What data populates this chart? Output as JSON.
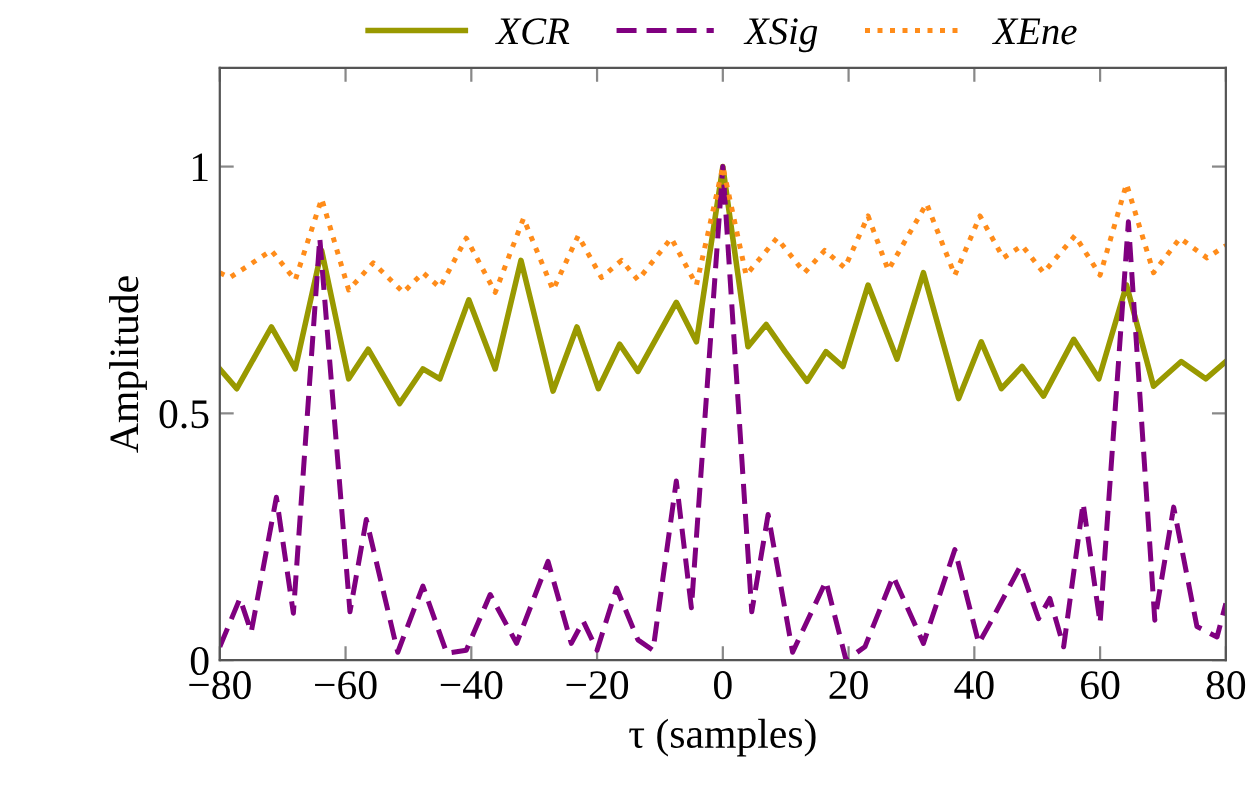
{
  "chart_data": {
    "type": "line",
    "xlabel": "τ (samples)",
    "ylabel": "Amplitude",
    "xlim": [
      -80,
      80
    ],
    "ylim": [
      0,
      1.2
    ],
    "xticks": [
      -80,
      -60,
      -40,
      -20,
      0,
      20,
      40,
      60,
      80
    ],
    "yticks": [
      0,
      0.5,
      1
    ],
    "grid": false,
    "legend": "top",
    "marker": "none",
    "series": [
      {
        "name": "XCR",
        "color": "#999900",
        "line_style": "solid",
        "x": [
          -80,
          -77.3,
          -71.8,
          -68,
          -63.8,
          -59.5,
          -56.4,
          -51.4,
          -47.7,
          -45,
          -40.4,
          -36.2,
          -32.1,
          -27,
          -23.2,
          -19.8,
          -16.4,
          -13.5,
          -7.4,
          -4.2,
          0,
          4,
          6.9,
          9.9,
          13.4,
          16.4,
          19.1,
          23.1,
          27.7,
          31.9,
          37.5,
          41.1,
          44.3,
          47.6,
          51,
          55.8,
          59.8,
          64.2,
          68.5,
          72.9,
          76.8,
          80
        ],
        "values": [
          0.59,
          0.55,
          0.675,
          0.59,
          0.83,
          0.57,
          0.63,
          0.52,
          0.59,
          0.57,
          0.73,
          0.59,
          0.81,
          0.545,
          0.675,
          0.55,
          0.64,
          0.585,
          0.725,
          0.645,
          1.0,
          0.635,
          0.68,
          0.625,
          0.565,
          0.625,
          0.595,
          0.76,
          0.61,
          0.785,
          0.53,
          0.645,
          0.55,
          0.595,
          0.535,
          0.65,
          0.57,
          0.76,
          0.555,
          0.605,
          0.57,
          0.605
        ]
      },
      {
        "name": "XSig",
        "color": "#800080",
        "line_style": "dashed",
        "x": [
          -80,
          -76.8,
          -75,
          -71,
          -68.3,
          -64.1,
          -59.3,
          -56.7,
          -51.7,
          -47.7,
          -43.9,
          -40.8,
          -37,
          -32.8,
          -27.8,
          -24.1,
          -22.2,
          -20,
          -16.9,
          -13.5,
          -11.1,
          -7.4,
          -5,
          0,
          4.6,
          7.2,
          11.1,
          16.4,
          19.6,
          22.6,
          27.1,
          31.9,
          36.9,
          40.7,
          42.5,
          47.3,
          50.2,
          52,
          54.2,
          57.3,
          60,
          64.5,
          68.7,
          71.7,
          75.4,
          78.6,
          80
        ],
        "values": [
          0.027,
          0.125,
          0.057,
          0.33,
          0.095,
          0.855,
          0.098,
          0.285,
          0.016,
          0.15,
          0.014,
          0.02,
          0.133,
          0.034,
          0.2,
          0.034,
          0.079,
          0.02,
          0.146,
          0.041,
          0.02,
          0.363,
          0.106,
          1.0,
          0.098,
          0.295,
          0.016,
          0.16,
          0.0,
          0.027,
          0.17,
          0.034,
          0.224,
          0.034,
          0.075,
          0.19,
          0.084,
          0.125,
          0.027,
          0.318,
          0.075,
          0.888,
          0.081,
          0.31,
          0.068,
          0.047,
          0.115
        ]
      },
      {
        "name": "XEne",
        "color": "#ff8c1a",
        "line_style": "dotted",
        "x": [
          -80,
          -78.4,
          -71.8,
          -68,
          -63.8,
          -59.5,
          -55.6,
          -50.8,
          -47.7,
          -45,
          -40.8,
          -36.2,
          -31.7,
          -27,
          -23,
          -19.3,
          -16.1,
          -13.5,
          -8.2,
          -4.2,
          0,
          3.7,
          8.6,
          13,
          16.2,
          19.4,
          23.1,
          26.3,
          32.4,
          36.9,
          40.9,
          44.6,
          47.6,
          51,
          56,
          60,
          64.2,
          68.5,
          72.7,
          77,
          80
        ],
        "values": [
          0.785,
          0.775,
          0.83,
          0.77,
          0.935,
          0.75,
          0.805,
          0.745,
          0.785,
          0.755,
          0.855,
          0.745,
          0.895,
          0.75,
          0.86,
          0.775,
          0.81,
          0.77,
          0.855,
          0.76,
          1.0,
          0.78,
          0.855,
          0.785,
          0.83,
          0.795,
          0.9,
          0.79,
          0.925,
          0.78,
          0.9,
          0.815,
          0.84,
          0.785,
          0.86,
          0.78,
          0.965,
          0.785,
          0.855,
          0.815,
          0.84
        ]
      }
    ]
  }
}
